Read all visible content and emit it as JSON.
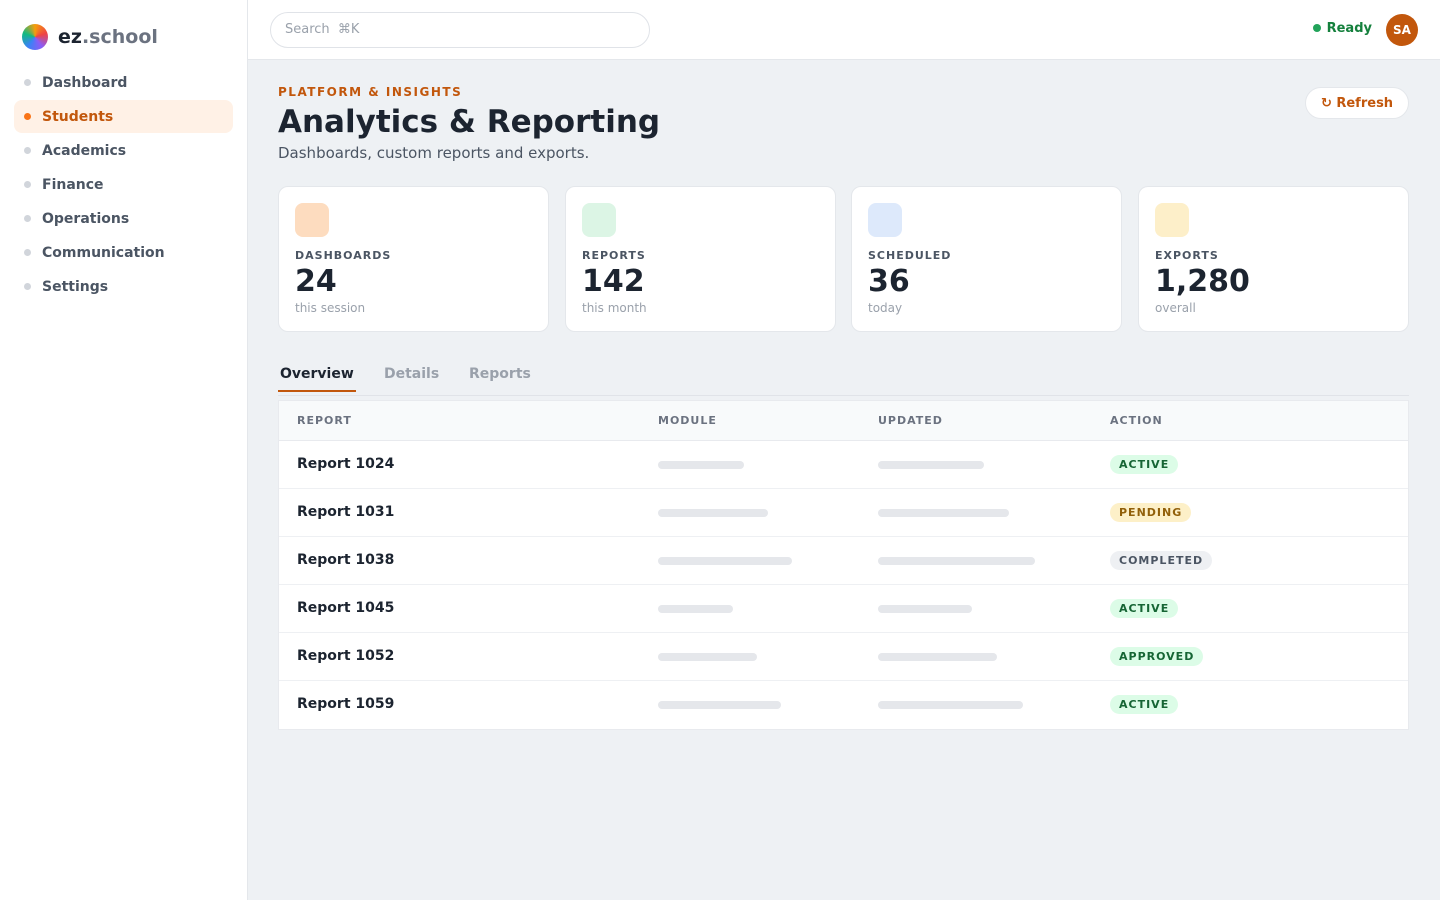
{
  "brand": {
    "name": "ez",
    "suffix": ".school"
  },
  "nav": [
    "Dashboard",
    "Students",
    "Academics",
    "Finance",
    "Operations",
    "Communication",
    "Settings"
  ],
  "search": {
    "placeholder": "Search  ⌘K"
  },
  "status": "Ready",
  "avatar": "SA",
  "header": {
    "eyebrow": "PLATFORM & INSIGHTS",
    "title": "Analytics & Reporting",
    "subtitle": "Dashboards, custom reports and exports.",
    "button": "↻ Refresh"
  },
  "stats": [
    {
      "label": "DASHBOARDS",
      "value": "24",
      "note": "this session"
    },
    {
      "label": "REPORTS",
      "value": "142",
      "note": "this month"
    },
    {
      "label": "SCHEDULED",
      "value": "36",
      "note": "today"
    },
    {
      "label": "EXPORTS",
      "value": "1,280",
      "note": "overall"
    }
  ],
  "tabs": [
    "Overview",
    "Details",
    "Reports"
  ],
  "table": {
    "columns": [
      "REPORT",
      "MODULE",
      "UPDATED",
      "ACTION"
    ],
    "rows": [
      {
        "name": "Report 1024",
        "status": "ACTIVE"
      },
      {
        "name": "Report 1031",
        "status": "PENDING"
      },
      {
        "name": "Report 1038",
        "status": "COMPLETED"
      },
      {
        "name": "Report 1045",
        "status": "ACTIVE"
      },
      {
        "name": "Report 1052",
        "status": "APPROVED"
      },
      {
        "name": "Report 1059",
        "status": "ACTIVE"
      }
    ]
  }
}
